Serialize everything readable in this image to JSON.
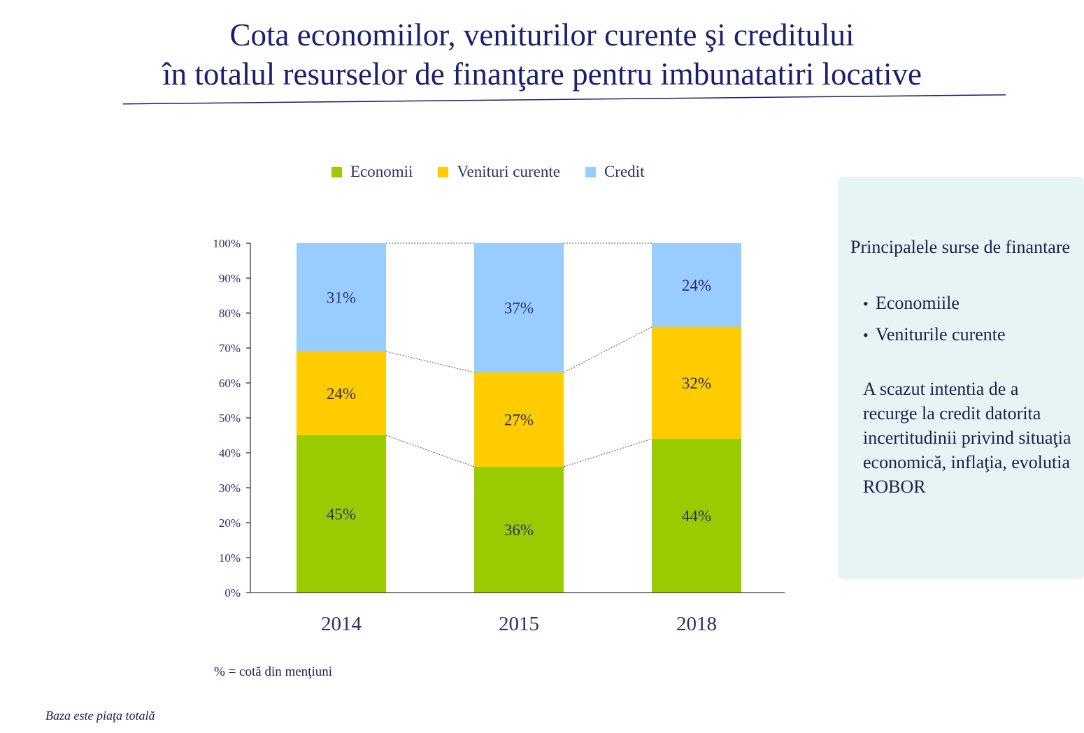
{
  "title_line1": "Cota economiilor, veniturilor curente şi creditului",
  "title_line2": "în totalul resurselor de finanţare pentru imbunatatiri locative",
  "colors": {
    "title": "#1a1f6e",
    "economii": "#99cc00",
    "venituri": "#ffcc00",
    "credit": "#99ccff"
  },
  "legend": [
    {
      "label": "Economii",
      "color": "#99cc00"
    },
    {
      "label": "Venituri curente",
      "color": "#ffcc00"
    },
    {
      "label": "Credit",
      "color": "#99ccff"
    }
  ],
  "chart_data": {
    "type": "bar",
    "stacked": true,
    "categories": [
      "2014",
      "2015",
      "2018"
    ],
    "series": [
      {
        "name": "Economii",
        "values": [
          45,
          36,
          44
        ],
        "labels": [
          "45%",
          "36%",
          "44%"
        ]
      },
      {
        "name": "Venituri curente",
        "values": [
          24,
          27,
          32
        ],
        "labels": [
          "24%",
          "27%",
          "32%"
        ]
      },
      {
        "name": "Credit",
        "values": [
          31,
          37,
          24
        ],
        "labels": [
          "31%",
          "37%",
          "24%"
        ]
      }
    ],
    "yticks": [
      "0%",
      "10%",
      "20%",
      "30%",
      "40%",
      "50%",
      "60%",
      "70%",
      "80%",
      "90%",
      "100%"
    ],
    "ylim": [
      0,
      100
    ],
    "grid": false,
    "legend_position": "top",
    "series_connector_lines": "dotted"
  },
  "note": "% = cotă din menţiuni",
  "footer": "Baza este piaţa totală",
  "side_box": {
    "heading": "Principalele surse de finantare",
    "bullets": [
      "Economiile",
      "Veniturile curente"
    ],
    "bullet_glyph": "•",
    "text": "A scazut intentia de a recurge la credit datorita incertitudinii privind situaţia economică, inflaţia, evolutia ROBOR"
  }
}
